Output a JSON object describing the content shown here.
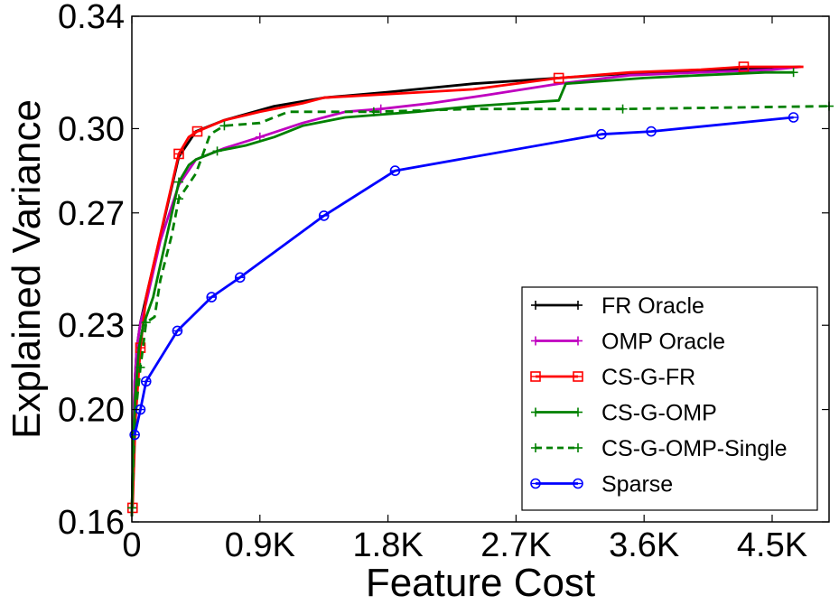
{
  "chart_data": {
    "type": "line",
    "title": "",
    "xlabel": "Feature Cost",
    "ylabel": "Explained Variance",
    "xlim": [
      0,
      4900
    ],
    "ylim": [
      0.16,
      0.34
    ],
    "x_ticks": [
      {
        "value": 0,
        "label": "0"
      },
      {
        "value": 900,
        "label": "0.9K"
      },
      {
        "value": 1800,
        "label": "1.8K"
      },
      {
        "value": 2700,
        "label": "2.7K"
      },
      {
        "value": 3600,
        "label": "3.6K"
      },
      {
        "value": 4500,
        "label": "4.5K"
      }
    ],
    "y_ticks": [
      {
        "value": 0.16,
        "label": "0.16"
      },
      {
        "value": 0.2,
        "label": "0.20"
      },
      {
        "value": 0.23,
        "label": "0.23"
      },
      {
        "value": 0.27,
        "label": "0.27"
      },
      {
        "value": 0.3,
        "label": "0.30"
      },
      {
        "value": 0.34,
        "label": "0.34"
      }
    ],
    "grid": false,
    "legend_position": "lower-right",
    "series": [
      {
        "name": "FR Oracle",
        "color": "#000000",
        "linestyle": "solid",
        "marker": "plus",
        "x": [
          0,
          10,
          20,
          35,
          60,
          100,
          330,
          450,
          650,
          1000,
          1350,
          1800,
          2400,
          3000,
          3600,
          4200,
          4700
        ],
        "y": [
          0.162,
          0.19,
          0.21,
          0.222,
          0.231,
          0.24,
          0.29,
          0.299,
          0.303,
          0.308,
          0.311,
          0.313,
          0.316,
          0.318,
          0.32,
          0.321,
          0.322
        ],
        "marker_indices": []
      },
      {
        "name": "OMP Oracle",
        "color": "#bf00bf",
        "linestyle": "solid",
        "marker": "plus",
        "x": [
          0,
          10,
          20,
          35,
          60,
          100,
          200,
          330,
          450,
          650,
          900,
          1200,
          1500,
          1750,
          2100,
          2500,
          3000,
          3500,
          4000,
          4500,
          4700
        ],
        "y": [
          0.162,
          0.19,
          0.21,
          0.222,
          0.231,
          0.238,
          0.26,
          0.28,
          0.289,
          0.293,
          0.297,
          0.302,
          0.306,
          0.307,
          0.309,
          0.312,
          0.316,
          0.319,
          0.32,
          0.321,
          0.322
        ],
        "marker_indices": [
          10,
          13
        ]
      },
      {
        "name": "CS-G-FR",
        "color": "#ff0000",
        "linestyle": "solid",
        "marker": "square",
        "x": [
          5,
          25,
          60,
          100,
          330,
          400,
          460,
          650,
          900,
          1200,
          1350,
          1700,
          2400,
          3000,
          3500,
          4000,
          4300,
          4600,
          4720
        ],
        "y": [
          0.165,
          0.196,
          0.222,
          0.24,
          0.291,
          0.297,
          0.299,
          0.303,
          0.306,
          0.309,
          0.311,
          0.312,
          0.314,
          0.318,
          0.32,
          0.321,
          0.322,
          0.322,
          0.322
        ],
        "marker_indices": [
          0,
          2,
          4,
          6,
          13,
          16
        ]
      },
      {
        "name": "CS-G-OMP",
        "color": "#008000",
        "linestyle": "solid",
        "marker": "plus",
        "x": [
          0,
          10,
          25,
          50,
          80,
          150,
          330,
          400,
          450,
          500,
          600,
          800,
          1000,
          1200,
          1500,
          1750,
          2000,
          2400,
          2700,
          3000,
          3050,
          3600,
          4000,
          4450,
          4650
        ],
        "y": [
          0.162,
          0.19,
          0.205,
          0.222,
          0.23,
          0.24,
          0.281,
          0.287,
          0.289,
          0.29,
          0.292,
          0.294,
          0.297,
          0.301,
          0.304,
          0.305,
          0.306,
          0.308,
          0.309,
          0.31,
          0.316,
          0.318,
          0.319,
          0.32,
          0.32
        ],
        "marker_indices": [
          6,
          10,
          24
        ]
      },
      {
        "name": "CS-G-OMP-Single",
        "color": "#008000",
        "linestyle": "dashed",
        "marker": "plus",
        "x": [
          0,
          20,
          60,
          100,
          160,
          200,
          280,
          330,
          450,
          550,
          650,
          900,
          1100,
          1700,
          2400,
          3450,
          4900
        ],
        "y": [
          0.165,
          0.196,
          0.215,
          0.231,
          0.233,
          0.246,
          0.262,
          0.275,
          0.284,
          0.298,
          0.301,
          0.302,
          0.306,
          0.306,
          0.307,
          0.307,
          0.308
        ],
        "marker_indices": [
          0,
          2,
          3,
          7,
          10,
          13,
          15,
          16
        ]
      },
      {
        "name": "Sparse",
        "color": "#0000ff",
        "linestyle": "solid",
        "marker": "circle",
        "x": [
          20,
          60,
          100,
          320,
          560,
          760,
          1350,
          1850,
          3300,
          3650,
          4650
        ],
        "y": [
          0.191,
          0.2,
          0.21,
          0.228,
          0.24,
          0.247,
          0.269,
          0.285,
          0.298,
          0.299,
          0.304
        ],
        "marker_indices": [
          0,
          1,
          2,
          3,
          4,
          5,
          6,
          7,
          8,
          9,
          10
        ]
      }
    ]
  }
}
